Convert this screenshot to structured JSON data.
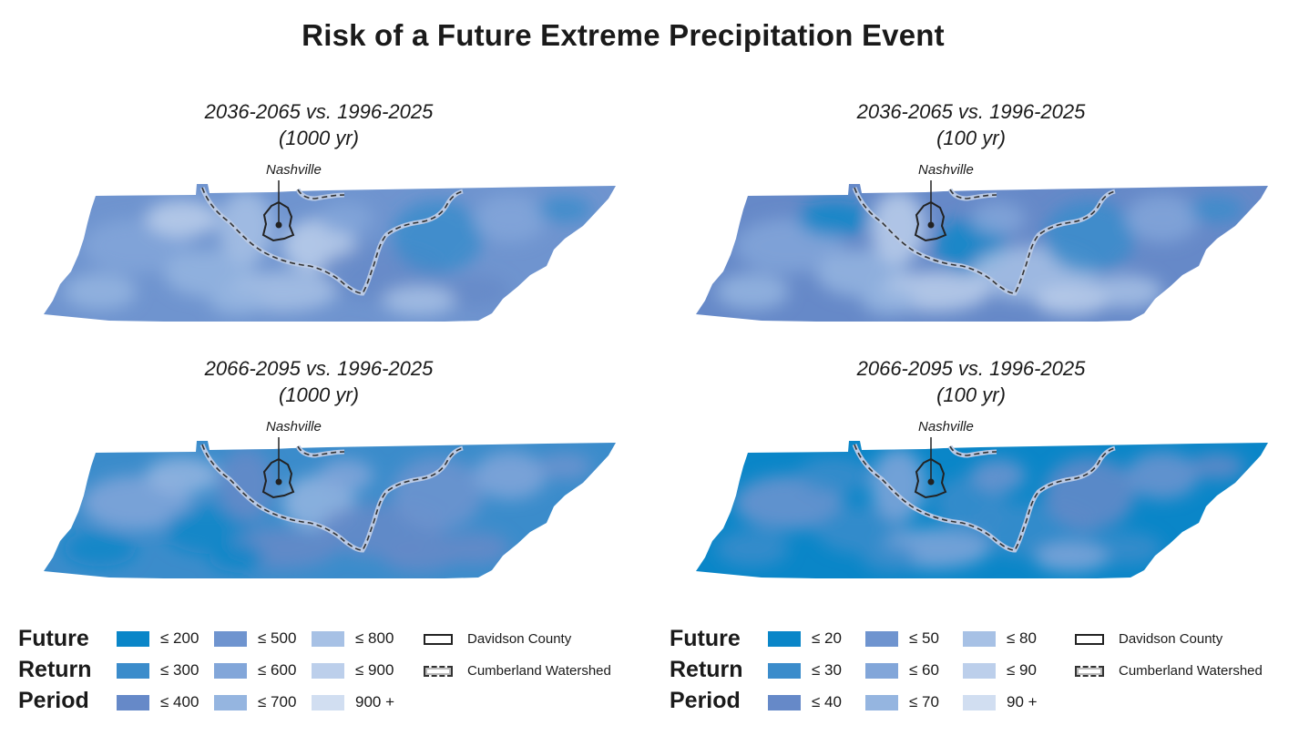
{
  "title": "Risk of a Future Extreme Precipitation Event",
  "panels": [
    {
      "title_line1": "2036-2065 vs. 1996-2025",
      "title_line2": "(1000 yr)",
      "city": "Nashville",
      "shade": "mid"
    },
    {
      "title_line1": "2036-2065 vs. 1996-2025",
      "title_line2": "(100 yr)",
      "city": "Nashville",
      "shade": "mid-dark"
    },
    {
      "title_line1": "2066-2095 vs. 1996-2025",
      "title_line2": "(1000 yr)",
      "city": "Nashville",
      "shade": "dark"
    },
    {
      "title_line1": "2066-2095 vs. 1996-2025",
      "title_line2": "(100 yr)",
      "city": "Nashville",
      "shade": "darkest"
    }
  ],
  "legends": [
    {
      "heading_line1": "Future",
      "heading_line2": "Return",
      "heading_line3": "Period",
      "classes": [
        "≤ 200",
        "≤ 300",
        "≤ 400",
        "≤ 500",
        "≤ 600",
        "≤ 700",
        "≤ 800",
        "≤ 900",
        "900 +"
      ],
      "county_label": "Davidson County",
      "watershed_label": "Cumberland Watershed"
    },
    {
      "heading_line1": "Future",
      "heading_line2": "Return",
      "heading_line3": "Period",
      "classes": [
        "≤ 20",
        "≤ 30",
        "≤ 40",
        "≤ 50",
        "≤ 60",
        "≤ 70",
        "≤ 80",
        "≤ 90",
        "90 +"
      ],
      "county_label": "Davidson County",
      "watershed_label": "Cumberland Watershed"
    }
  ],
  "colors": {
    "class_colors": [
      "#0a86c8",
      "#3b8ccb",
      "#6689c8",
      "#6f94cf",
      "#82a6d9",
      "#95b5e0",
      "#a7c1e5",
      "#bccfeb",
      "#d1def1"
    ],
    "county_outline": "#222222",
    "watershed_dash": "#333333",
    "watershed_halo": "#b9c9e4"
  }
}
